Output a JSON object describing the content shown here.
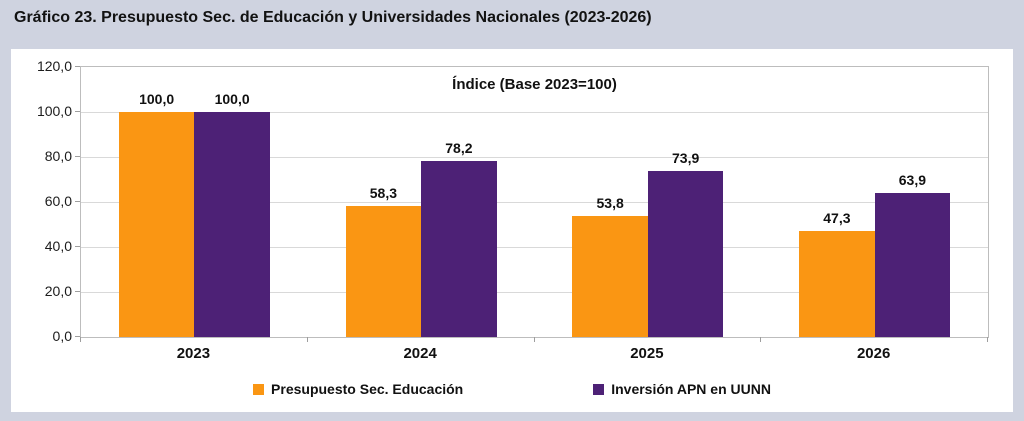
{
  "title": "Gráfico 23. Presupuesto Sec. de Educación y Universidades Nacionales (2023-2026)",
  "chart_data": {
    "type": "bar",
    "subtitle": "Índice (Base 2023=100)",
    "categories": [
      "2023",
      "2024",
      "2025",
      "2026"
    ],
    "series": [
      {
        "name": "Presupuesto Sec. Educación",
        "color": "#FA9613",
        "values": [
          100.0,
          58.3,
          53.8,
          47.3
        ],
        "labels": [
          "100,0",
          "58,3",
          "53,8",
          "47,3"
        ]
      },
      {
        "name": "Inversión APN en UUNN",
        "color": "#4D2176",
        "values": [
          100.0,
          78.2,
          73.9,
          63.9
        ],
        "labels": [
          "100,0",
          "78,2",
          "73,9",
          "63,9"
        ]
      }
    ],
    "ylim": [
      0,
      120
    ],
    "ytick_step": 20,
    "ytick_labels": [
      "120,0",
      "100,0",
      "80,0",
      "60,0",
      "40,0",
      "20,0",
      "0,0"
    ],
    "grid": true,
    "legend_position": "bottom"
  },
  "colors": {
    "page_bg": "#cfd3e0",
    "panel_bg": "#ffffff",
    "gridline": "#d9d9d9",
    "axis_frame": "#bdbdbd",
    "text": "#111111"
  }
}
